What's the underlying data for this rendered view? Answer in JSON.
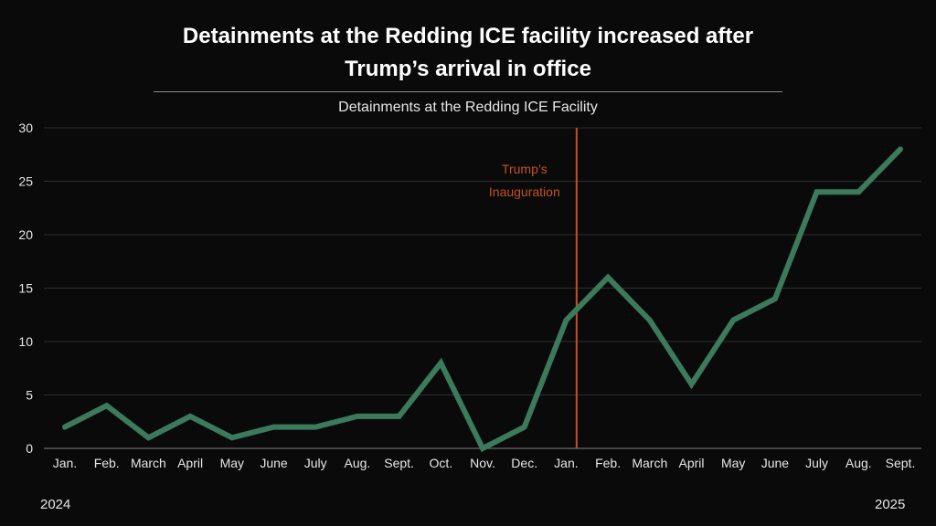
{
  "title_line1": "Detainments at the Redding ICE facility increased after",
  "title_line2": "Trump’s arrival in office",
  "chart_data": {
    "type": "line",
    "title": "Detainments at the Redding ICE facility increased after Trump’s arrival in office",
    "subtitle": "Detainments at the Redding ICE Facility",
    "xlabel": "",
    "ylabel": "",
    "categories": [
      "Jan.",
      "Feb.",
      "March",
      "April",
      "May",
      "June",
      "July",
      "Aug.",
      "Sept.",
      "Oct.",
      "Nov.",
      "Dec.",
      "Jan.",
      "Feb.",
      "March",
      "April",
      "May",
      "June",
      "July",
      "Aug.",
      "Sept."
    ],
    "series": [
      {
        "name": "Detainments",
        "color": "#3b7a5c",
        "values": [
          2,
          4,
          1,
          3,
          1,
          2,
          2,
          3,
          3,
          8,
          0,
          2,
          12,
          16,
          12,
          6,
          12,
          14,
          24,
          24,
          28
        ]
      }
    ],
    "ylim": [
      0,
      30
    ],
    "yticks": [
      0,
      5,
      10,
      15,
      20,
      25,
      30
    ],
    "grid": true,
    "year_labels": {
      "start": "2024",
      "end": "2025"
    },
    "annotations": [
      {
        "type": "vertical-line",
        "position_index": 12.25,
        "label_line1": "Trump’s",
        "label_line2": "Inauguration",
        "color": "#c4521f"
      }
    ]
  }
}
